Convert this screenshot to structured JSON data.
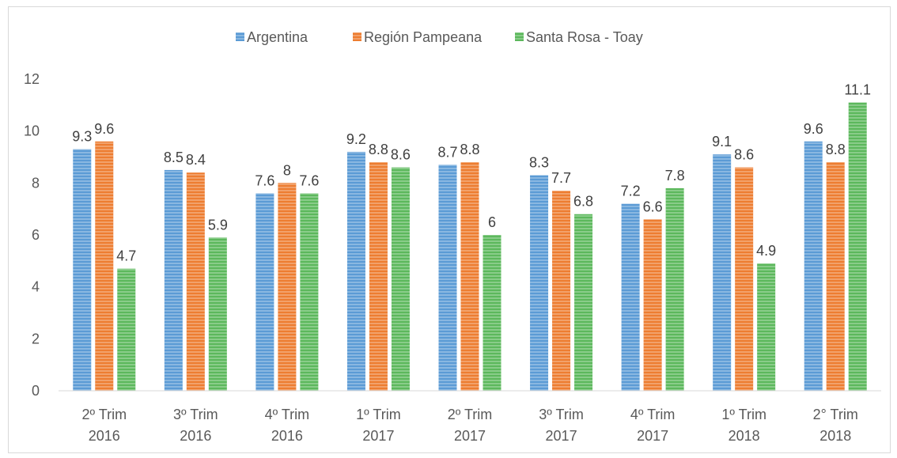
{
  "chart_data": {
    "type": "bar",
    "categories": [
      [
        "2º Trim",
        "2016"
      ],
      [
        "3º Trim",
        "2016"
      ],
      [
        "4º Trim",
        "2016"
      ],
      [
        "1º Trim",
        "2017"
      ],
      [
        "2º Trim",
        "2017"
      ],
      [
        "3º Trim",
        "2017"
      ],
      [
        "4º Trim",
        "2017"
      ],
      [
        "1º Trim",
        "2018"
      ],
      [
        "2° Trim",
        "2018"
      ]
    ],
    "series": [
      {
        "name": "Argentina",
        "color": "#5b9bd5",
        "values": [
          9.3,
          8.5,
          7.6,
          9.2,
          8.7,
          8.3,
          7.2,
          9.1,
          9.6
        ],
        "labels": [
          "9.3",
          "8.5",
          "7.6",
          "9.2",
          "8.7",
          "8.3",
          "7.2",
          "9.1",
          "9.6"
        ]
      },
      {
        "name": "Región Pampeana",
        "color": "#ed7d31",
        "values": [
          9.6,
          8.4,
          8,
          8.8,
          8.8,
          7.7,
          6.6,
          8.6,
          8.8
        ],
        "labels": [
          "9.6",
          "8.4",
          "8",
          "8.8",
          "8.8",
          "7.7",
          "6.6",
          "8.6",
          "8.8"
        ]
      },
      {
        "name": "Santa Rosa - Toay",
        "color": "#5cb85c",
        "values": [
          4.7,
          5.9,
          7.6,
          8.6,
          6,
          6.8,
          7.8,
          4.9,
          11.1
        ],
        "labels": [
          "4.7",
          "5.9",
          "7.6",
          "8.6",
          "6",
          "6.8",
          "7.8",
          "4.9",
          "11.1"
        ]
      }
    ],
    "ylim": [
      0,
      12
    ],
    "yticks": [
      "0",
      "2",
      "4",
      "6",
      "8",
      "10",
      "12"
    ],
    "grid": false,
    "legend_position": "top",
    "title": "",
    "xlabel": "",
    "ylabel": ""
  }
}
